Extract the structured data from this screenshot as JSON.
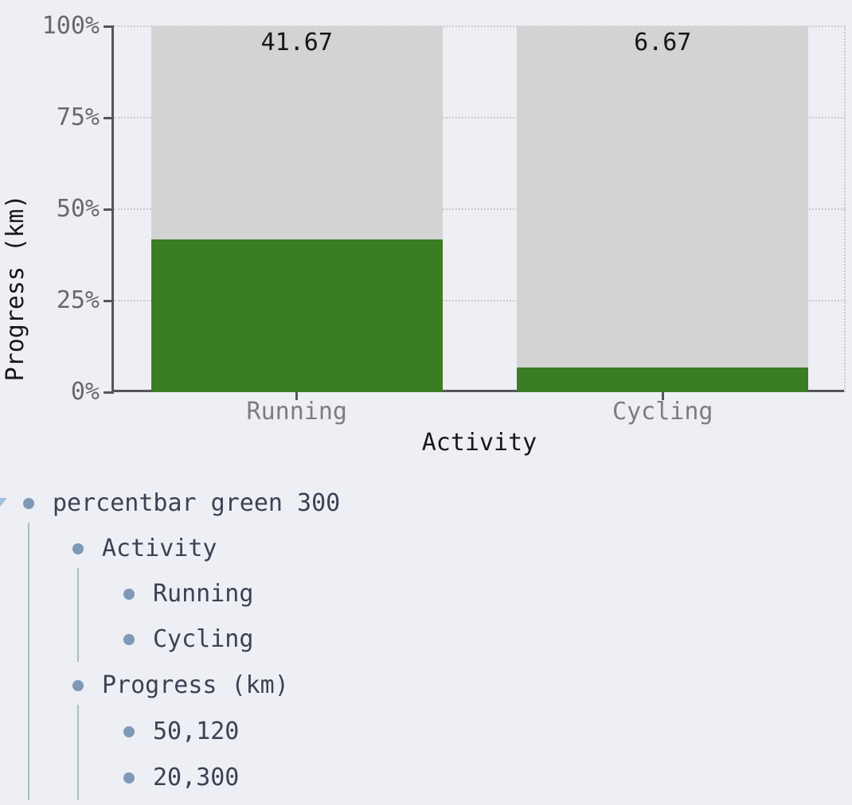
{
  "page": {
    "background": "#edeff4"
  },
  "chart_data": {
    "type": "bar",
    "subtype": "percent-stacked-progress",
    "title": "",
    "xlabel": "Activity",
    "ylabel": "Progress (km)",
    "categories": [
      "Running",
      "Cycling"
    ],
    "series": [
      {
        "name": "progress",
        "values": [
          50,
          20
        ]
      },
      {
        "name": "goal",
        "values": [
          120,
          300
        ]
      }
    ],
    "bars": [
      {
        "category": "Running",
        "progress": 50,
        "goal": 120,
        "percent": 41.67,
        "label": "41.67"
      },
      {
        "category": "Cycling",
        "progress": 20,
        "goal": 300,
        "percent": 6.67,
        "label": "6.67"
      }
    ],
    "yticks": [
      {
        "label": "0%",
        "percent": 0
      },
      {
        "label": "25%",
        "percent": 25
      },
      {
        "label": "50%",
        "percent": 50
      },
      {
        "label": "75%",
        "percent": 75
      },
      {
        "label": "100%",
        "percent": 100
      }
    ],
    "ylim": [
      0,
      100
    ],
    "legend": false,
    "grid": "horizontal-dotted",
    "colors": {
      "fill": "#3a7d22",
      "remainder": "#d3d3d4",
      "axis": "#55565a",
      "grid": "#c8c9cc",
      "ytick_text": "#68696d",
      "xtick_text": "#7c7d81",
      "value_text": "#15171a"
    }
  },
  "tree": {
    "nodes": [
      {
        "label": "percentbar green 300",
        "level": 0,
        "caret": "expanded"
      },
      {
        "label": "Activity",
        "level": 1
      },
      {
        "label": "Running",
        "level": 2
      },
      {
        "label": "Cycling",
        "level": 2
      },
      {
        "label": "Progress (km)",
        "level": 1
      },
      {
        "label": "50,120",
        "level": 2
      },
      {
        "label": "20,300",
        "level": 2
      }
    ],
    "colors": {
      "text": "#3a4253",
      "bullet": "#8099b8",
      "guide": "#a9bfb6",
      "caret": "#9fc2d8"
    }
  }
}
